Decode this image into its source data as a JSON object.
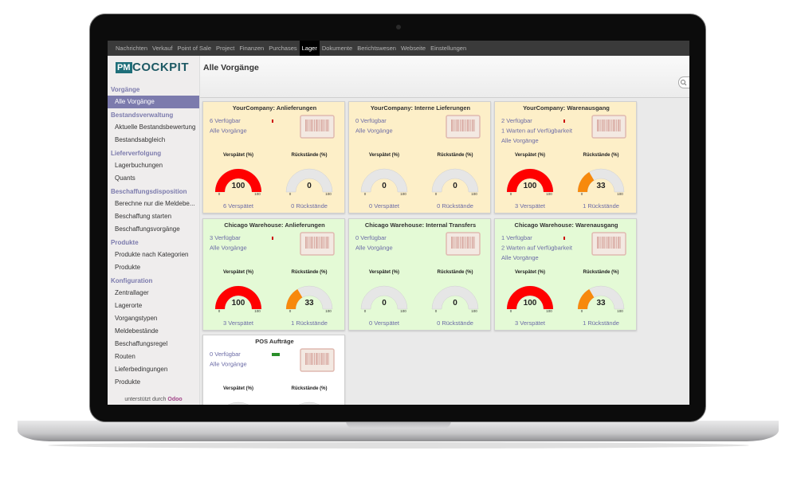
{
  "menu": {
    "items": [
      "Nachrichten",
      "Verkauf",
      "Point of Sale",
      "Project",
      "Finanzen",
      "Purchases",
      "Lager",
      "Dokumente",
      "Berichtswesen",
      "Webseite",
      "Einstellungen"
    ],
    "active": 6
  },
  "logo": {
    "badge": "PM",
    "text": "COCKPIT"
  },
  "sidebar": {
    "active": {
      "section": 0,
      "item": 0
    },
    "sections": [
      {
        "title": "Vorgänge",
        "items": [
          "Alle Vorgänge"
        ]
      },
      {
        "title": "Bestandsverwaltung",
        "items": [
          "Aktuelle Bestandsbewertung",
          "Bestandsabgleich"
        ]
      },
      {
        "title": "Lieferverfolgung",
        "items": [
          "Lagerbuchungen",
          "Quants"
        ]
      },
      {
        "title": "Beschaffungsdisposition",
        "items": [
          "Berechne nur die Meldebe...",
          "Beschaffung starten",
          "Beschaffungsvorgänge"
        ]
      },
      {
        "title": "Produkte",
        "items": [
          "Produkte nach Kategorien",
          "Produkte"
        ]
      },
      {
        "title": "Konfiguration",
        "items": [
          "Zentrallager",
          "Lagerorte",
          "Vorgangstypen",
          "Meldebestände",
          "Beschaffungsregel",
          "Routen",
          "Lieferbedingungen",
          "Produkte"
        ]
      }
    ]
  },
  "footer": {
    "text": "unterstützt durch",
    "brand": "Odoo"
  },
  "page": {
    "title": "Alle Vorgänge"
  },
  "gauge_scale": {
    "min": 0,
    "max": 100
  },
  "cards": [
    {
      "title": "YourCompany: Anlieferungen",
      "background": "#fdefc8",
      "indicator": "#cc0000",
      "lines": [
        "6 Verfügbar",
        "Alle Vorgänge"
      ],
      "gauges": [
        {
          "label": "Verspätet (%)",
          "value": 100,
          "color": "#ff0000"
        },
        {
          "label": "Rückstände (%)",
          "value": 0
        }
      ],
      "links": [
        "6 Verspätet",
        "0 Rückstände"
      ]
    },
    {
      "title": "YourCompany: Interne Lieferungen",
      "background": "#fdefc8",
      "lines": [
        "0 Verfügbar",
        "Alle Vorgänge"
      ],
      "gauges": [
        {
          "label": "Verspätet (%)",
          "value": 0
        },
        {
          "label": "Rückstände (%)",
          "value": 0
        }
      ],
      "links": [
        "0 Verspätet",
        "0 Rückstände"
      ]
    },
    {
      "title": "YourCompany: Warenausgang",
      "background": "#fdefc8",
      "indicator": "#cc0000",
      "lines": [
        "2 Verfügbar",
        "1 Warten auf Verfügbarkeit",
        "Alle Vorgänge"
      ],
      "gauges": [
        {
          "label": "Verspätet (%)",
          "value": 100,
          "color": "#ff0000"
        },
        {
          "label": "Rückstände (%)",
          "value": 33,
          "color": "#f7890c"
        }
      ],
      "links": [
        "3 Verspätet",
        "1 Rückstände"
      ]
    },
    {
      "title": "Chicago Warehouse: Anlieferungen",
      "background": "#e4fad6",
      "indicator": "#cc0000",
      "lines": [
        "3 Verfügbar",
        "Alle Vorgänge"
      ],
      "gauges": [
        {
          "label": "Verspätet (%)",
          "value": 100,
          "color": "#ff0000"
        },
        {
          "label": "Rückstände (%)",
          "value": 33,
          "color": "#f7890c"
        }
      ],
      "links": [
        "3 Verspätet",
        "1 Rückstände"
      ]
    },
    {
      "title": "Chicago Warehouse: Internal Transfers",
      "background": "#e4fad6",
      "lines": [
        "0 Verfügbar",
        "Alle Vorgänge"
      ],
      "gauges": [
        {
          "label": "Verspätet (%)",
          "value": 0
        },
        {
          "label": "Rückstände (%)",
          "value": 0
        }
      ],
      "links": [
        "0 Verspätet",
        "0 Rückstände"
      ]
    },
    {
      "title": "Chicago Warehouse: Warenausgang",
      "background": "#e4fad6",
      "indicator": "#cc0000",
      "lines": [
        "1 Verfügbar",
        "2 Warten auf Verfügbarkeit",
        "Alle Vorgänge"
      ],
      "gauges": [
        {
          "label": "Verspätet (%)",
          "value": 100,
          "color": "#ff0000"
        },
        {
          "label": "Rückstände (%)",
          "value": 33,
          "color": "#f7890c"
        }
      ],
      "links": [
        "3 Verspätet",
        "1 Rückstände"
      ]
    },
    {
      "title": "POS Aufträge",
      "background": "#ffffff",
      "indicator": "#2a8f2a",
      "lines": [
        "0 Verfügbar",
        "Alle Vorgänge"
      ],
      "gauges": [
        {
          "label": "Verspätet (%)"
        },
        {
          "label": "Rückstände (%)"
        }
      ],
      "links": []
    }
  ]
}
